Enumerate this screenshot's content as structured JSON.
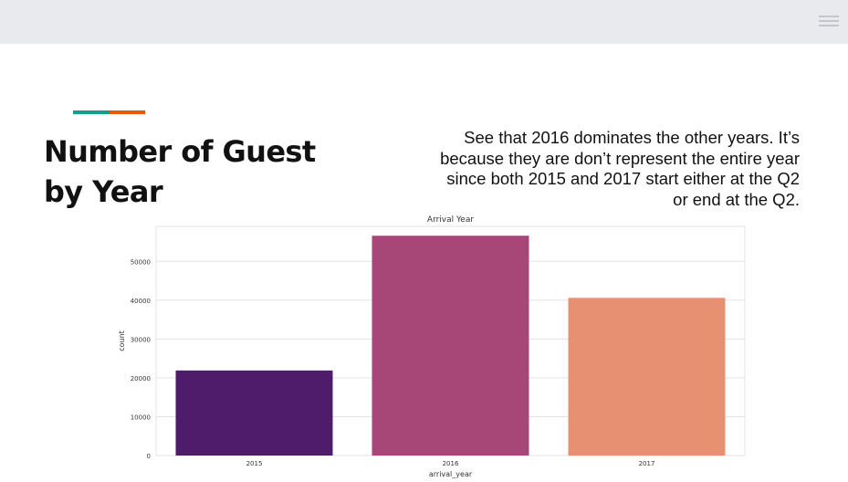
{
  "slide": {
    "title_line1": "Number of Guest",
    "title_line2": "by Year",
    "description": "See that 2016 dominates the other years. It’s because they are don’t represent the entire year since both 2015 and 2017 start either at the Q2 or end at the Q2.",
    "accent_colors": [
      "#1a9c8c",
      "#e35a0c"
    ]
  },
  "chart_data": {
    "type": "bar",
    "title": "Arrival Year",
    "xlabel": "arrival_year",
    "ylabel": "count",
    "categories": [
      "2015",
      "2016",
      "2017"
    ],
    "values": [
      21900,
      56600,
      40600
    ],
    "colors": [
      "#4f1c6b",
      "#a64778",
      "#e89172"
    ],
    "ylim": [
      0,
      59000
    ],
    "yticks": [
      0,
      10000,
      20000,
      30000,
      40000,
      50000
    ],
    "grid": true
  }
}
